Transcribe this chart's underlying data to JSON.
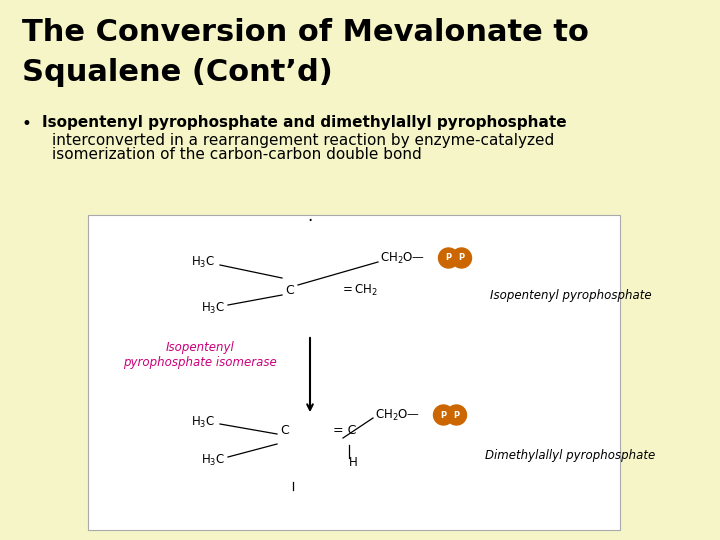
{
  "background_color": "#f5f5c8",
  "title_line1": "The Conversion of Mevalonate to",
  "title_line2": "Squalene (Cont’d)",
  "title_fontsize": 22,
  "title_color": "#000000",
  "bullet_bold_text": "Isopentenyl pyrophosphate and dimethylallyl pyrophosphate",
  "bullet_normal_line1": "interconverted in a rearrangement reaction by enzyme-catalyzed",
  "bullet_normal_line2": "isomerization of the carbon-carbon double bond",
  "bullet_fontsize": 11,
  "image_bg": "#ffffff",
  "enzyme_label": "Isopentenyl\npyrophosphate isomerase",
  "enzyme_color": "#cc007a",
  "top_label": "Isopentenyl pyrophosphate",
  "bottom_label": "Dimethylallyl pyrophosphate",
  "pp_color": "#cc6600",
  "pp_text_color": "#ffffff"
}
